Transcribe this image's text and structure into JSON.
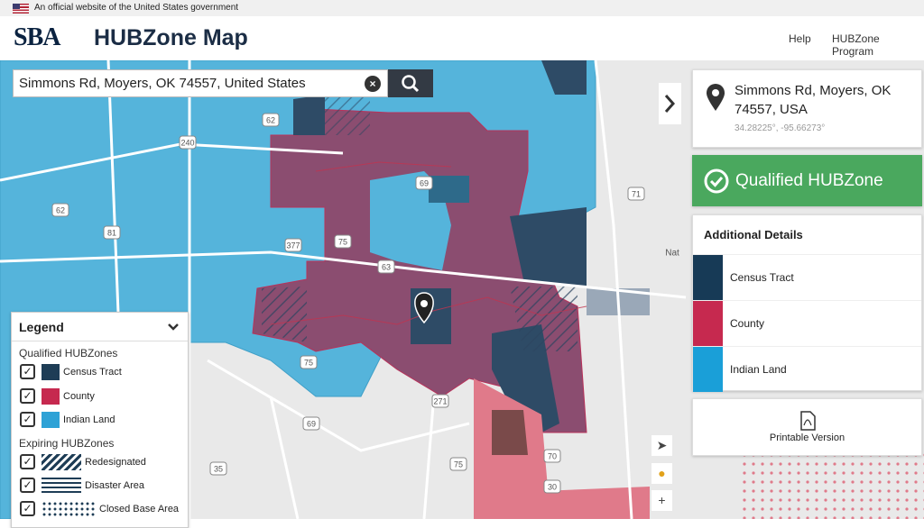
{
  "banner": {
    "text": "An official website of the United States government"
  },
  "header": {
    "logo": "SBA",
    "title": "HUBZone Map",
    "nav": [
      "Help",
      "HUBZone Program"
    ]
  },
  "search": {
    "value": "Simmons Rd, Moyers, OK 74557, United States"
  },
  "map": {
    "road_labels": [
      "62",
      "240",
      "62",
      "81",
      "69",
      "75",
      "377",
      "63",
      "71",
      "75",
      "69",
      "271",
      "35",
      "70",
      "75",
      "30",
      "Nat"
    ]
  },
  "legend": {
    "title": "Legend",
    "qualified_heading": "Qualified HUBZones",
    "qualified": [
      "Census Tract",
      "County",
      "Indian Land"
    ],
    "expiring_heading": "Expiring HUBZones",
    "expiring": [
      "Redesignated",
      "Disaster Area",
      "Closed Base Area"
    ]
  },
  "location": {
    "address": "Simmons Rd, Moyers, OK 74557, USA",
    "coordinates": "34.28225°, -95.66273°"
  },
  "status": "Qualified HUBZone",
  "details": {
    "title": "Additional Details",
    "items": [
      "Census Tract",
      "County",
      "Indian Land"
    ]
  },
  "printable": "Printable Version"
}
